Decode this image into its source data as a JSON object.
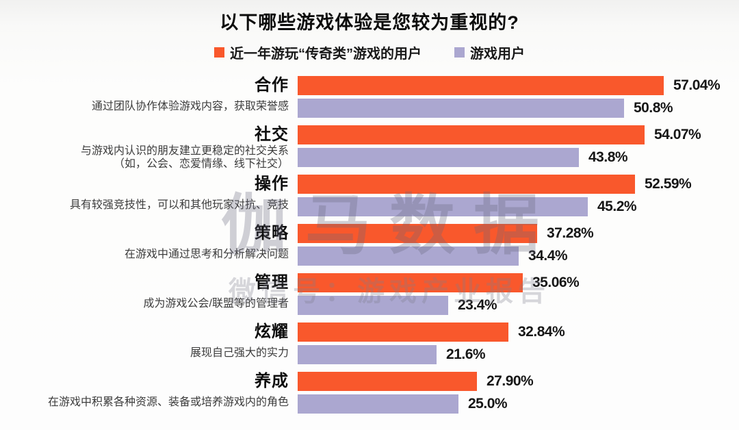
{
  "title": "以下哪些游戏体验是您较为重视的?",
  "legend": {
    "items": [
      {
        "label": "近一年游玩“传奇类”游戏的用户",
        "color": "#f9582c"
      },
      {
        "label": "游戏用户",
        "color": "#aba7d0"
      }
    ]
  },
  "watermark": {
    "primary": "伽马数据",
    "secondary": "微信号：游戏产业报告"
  },
  "colors": {
    "series1": "#f9582c",
    "series2": "#aba7d0",
    "value_text": "#161616"
  },
  "chart_data": {
    "type": "bar",
    "orientation": "horizontal",
    "title": "以下哪些游戏体验是您较为重视的?",
    "xlabel": "",
    "ylabel": "",
    "xlim": [
      0,
      60
    ],
    "grid": false,
    "legend_position": "top",
    "categories": [
      "合作",
      "社交",
      "操作",
      "策略",
      "管理",
      "炫耀",
      "养成"
    ],
    "category_desc_lines": [
      [
        "通过团队协作体验游戏内容，获取荣誉感"
      ],
      [
        "与游戏内认识的朋友建立更稳定的社交关系",
        "（如，公会、恋爱情缘、线下社交）"
      ],
      [
        "具有较强竞技性，可以和其他玩家对抗、竞技"
      ],
      [
        "在游戏中通过思考和分析解决问题"
      ],
      [
        "成为游戏公会/联盟等的管理者"
      ],
      [
        "展现自己强大的实力"
      ],
      [
        "在游戏中积累各种资源、装备或培养游戏内的角色"
      ]
    ],
    "series": [
      {
        "name": "近一年游玩“传奇类”游戏的用户",
        "color": "#f9582c",
        "values": [
          57.04,
          54.07,
          52.59,
          37.28,
          35.06,
          32.84,
          27.9
        ],
        "value_labels": [
          "57.04%",
          "54.07%",
          "52.59%",
          "37.28%",
          "35.06%",
          "32.84%",
          "27.90%"
        ]
      },
      {
        "name": "游戏用户",
        "color": "#aba7d0",
        "values": [
          50.8,
          43.8,
          45.2,
          34.4,
          23.4,
          21.6,
          25.0
        ],
        "value_labels": [
          "50.8%",
          "43.8%",
          "45.2%",
          "34.4%",
          "23.4%",
          "21.6%",
          "25.0%"
        ]
      }
    ]
  }
}
